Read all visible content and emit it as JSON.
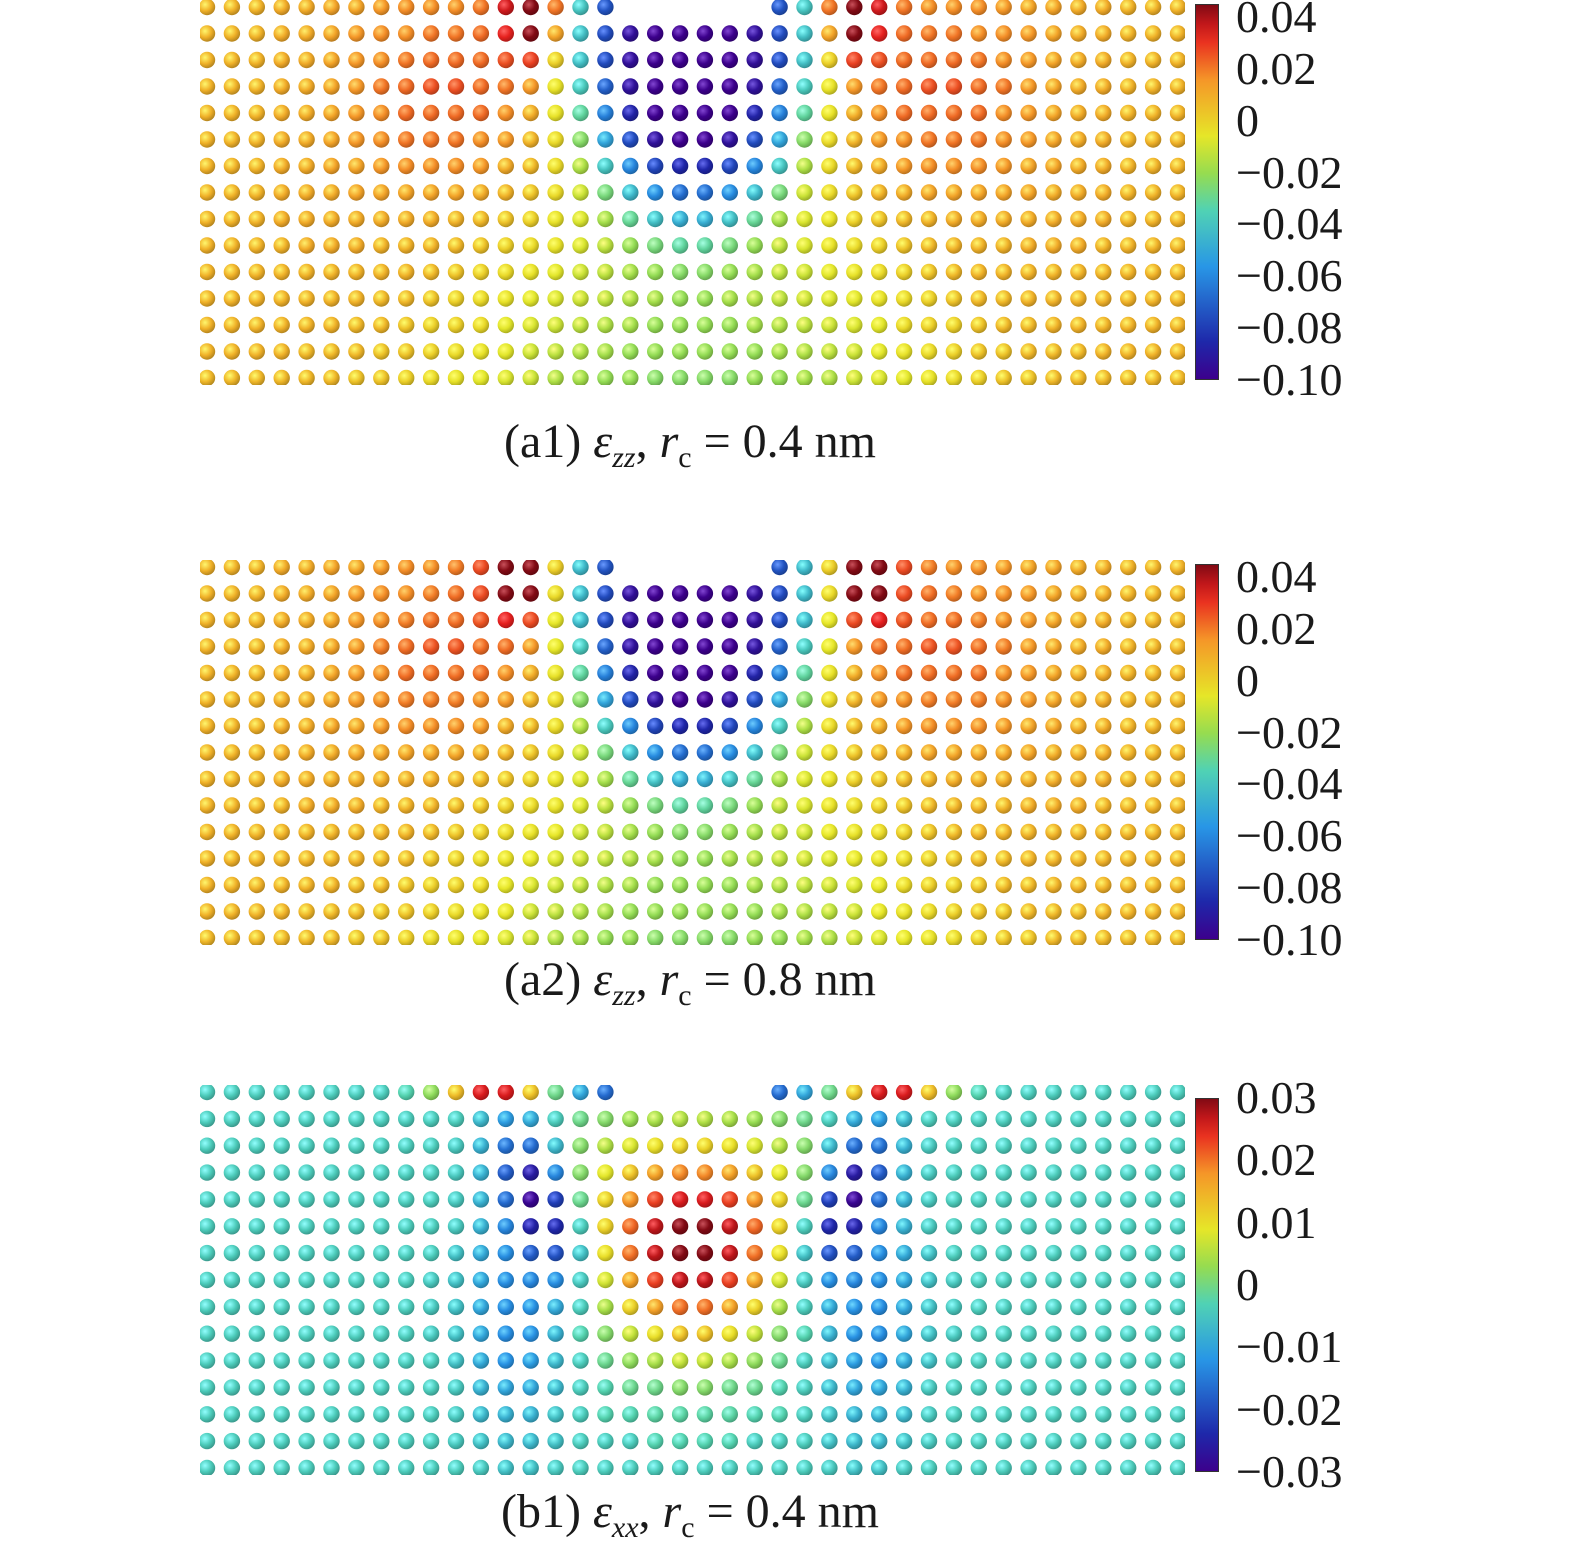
{
  "chart_data": [
    {
      "type": "heatmap",
      "panel_label": "(a1)",
      "quantity_symbol": "ε",
      "quantity_subscript": "zz",
      "radius_symbol": "r",
      "radius_subscript": "c",
      "equals": "=",
      "radius_value": "0.4 nm",
      "pattern": "zz",
      "colorbar": {
        "min": -0.1,
        "max": 0.045,
        "ticks": [
          "0.04",
          "0.02",
          "0",
          "−0.02",
          "−0.04",
          "−0.06",
          "−0.08",
          "−0.10"
        ],
        "tick_values": [
          0.04,
          0.02,
          0,
          -0.02,
          -0.04,
          -0.06,
          -0.08,
          -0.1
        ]
      }
    },
    {
      "type": "heatmap",
      "panel_label": "(a2)",
      "quantity_symbol": "ε",
      "quantity_subscript": "zz",
      "radius_symbol": "r",
      "radius_subscript": "c",
      "equals": "=",
      "radius_value": "0.8 nm",
      "pattern": "zz",
      "colorbar": {
        "min": -0.1,
        "max": 0.045,
        "ticks": [
          "0.04",
          "0.02",
          "0",
          "−0.02",
          "−0.04",
          "−0.06",
          "−0.08",
          "−0.10"
        ],
        "tick_values": [
          0.04,
          0.02,
          0,
          -0.02,
          -0.04,
          -0.06,
          -0.08,
          -0.1
        ]
      }
    },
    {
      "type": "heatmap",
      "panel_label": "(b1)",
      "quantity_symbol": "ε",
      "quantity_subscript": "xx",
      "radius_symbol": "r",
      "radius_subscript": "c",
      "equals": "=",
      "radius_value": "0.4 nm",
      "pattern": "xx",
      "colorbar": {
        "min": -0.03,
        "max": 0.03,
        "ticks": [
          "0.03",
          "0.02",
          "0.01",
          "0",
          "−0.01",
          "−0.02",
          "−0.03"
        ],
        "tick_values": [
          0.03,
          0.02,
          0.01,
          0,
          -0.01,
          -0.02,
          -0.03
        ]
      }
    }
  ]
}
